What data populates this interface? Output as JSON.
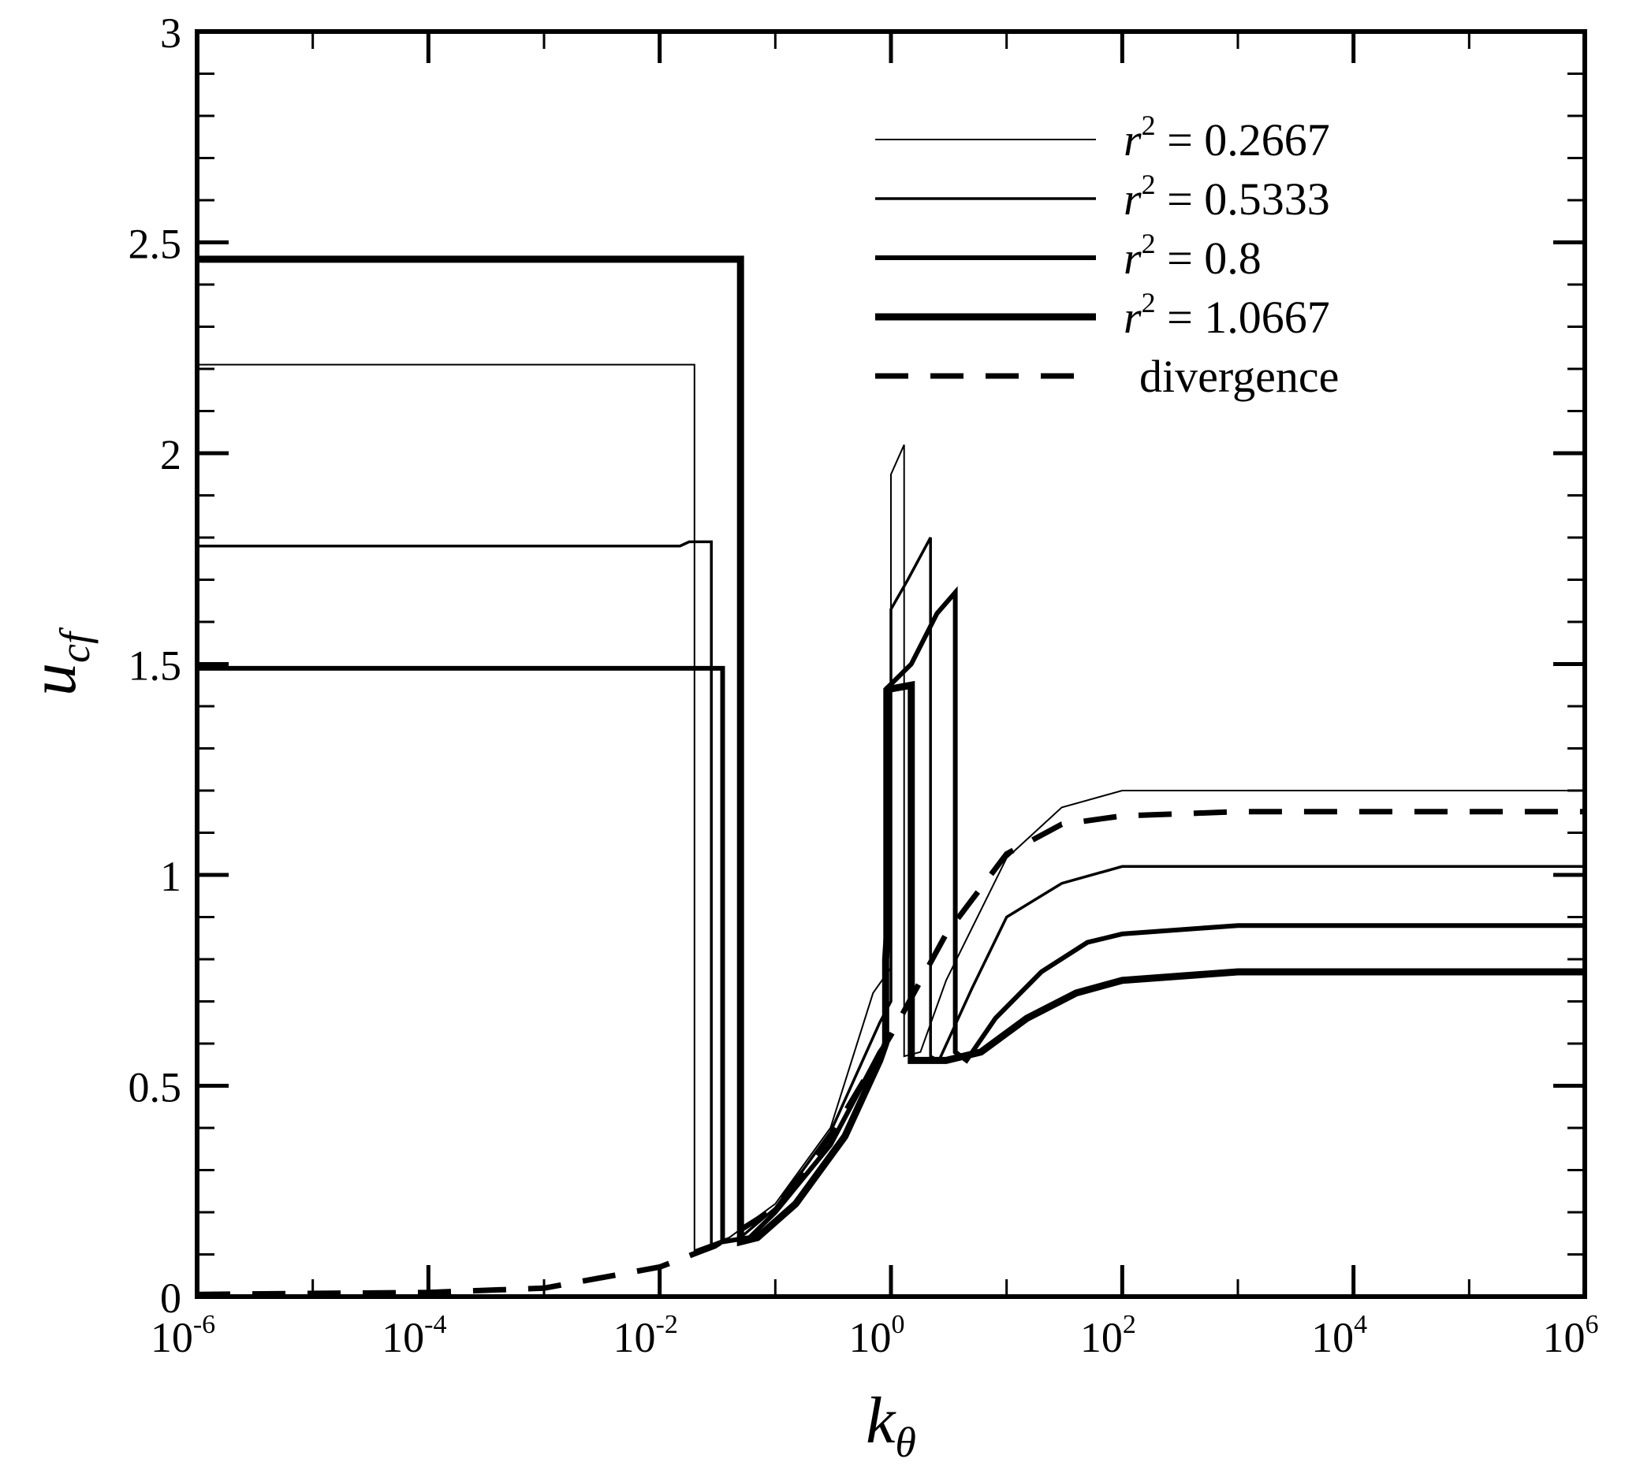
{
  "chart_data": {
    "type": "line",
    "title": "",
    "xscale": "log",
    "xlim": [
      1e-06,
      1000000.0
    ],
    "ylim": [
      0,
      3
    ],
    "grid": false,
    "legend_position": "top-right",
    "xlabel": {
      "base": "k",
      "sub": "θ"
    },
    "ylabel": {
      "base": "u",
      "sub": "cf"
    },
    "x_ticks": [
      {
        "value": 1e-06,
        "base": "10",
        "exp": "-6"
      },
      {
        "value": 0.0001,
        "base": "10",
        "exp": "-4"
      },
      {
        "value": 0.01,
        "base": "10",
        "exp": "-2"
      },
      {
        "value": 1,
        "base": "10",
        "exp": "0"
      },
      {
        "value": 100.0,
        "base": "10",
        "exp": "2"
      },
      {
        "value": 10000.0,
        "base": "10",
        "exp": "4"
      },
      {
        "value": 1000000.0,
        "base": "10",
        "exp": "6"
      }
    ],
    "y_ticks": [
      {
        "value": 0,
        "label": "0"
      },
      {
        "value": 0.5,
        "label": "0.5"
      },
      {
        "value": 1,
        "label": "1"
      },
      {
        "value": 1.5,
        "label": "1.5"
      },
      {
        "value": 2,
        "label": "2"
      },
      {
        "value": 2.5,
        "label": "2.5"
      },
      {
        "value": 3,
        "label": "3"
      }
    ],
    "series": [
      {
        "name": "r2 = 0.2667",
        "legend": {
          "var": "r",
          "sup": "2",
          "rest": " = 0.2667"
        },
        "style": "solid",
        "weight": 2,
        "points": [
          [
            1e-06,
            2.21
          ],
          [
            0.02,
            2.21
          ],
          [
            0.02,
            0.11
          ],
          [
            0.04,
            0.14
          ],
          [
            0.1,
            0.22
          ],
          [
            0.3,
            0.4
          ],
          [
            0.7,
            0.72
          ],
          [
            1.0,
            0.78
          ],
          [
            1.0,
            1.95
          ],
          [
            1.3,
            2.02
          ],
          [
            1.3,
            0.57
          ],
          [
            1.8,
            0.58
          ],
          [
            3,
            0.75
          ],
          [
            10,
            1.04
          ],
          [
            30,
            1.16
          ],
          [
            100,
            1.2
          ],
          [
            1000,
            1.2
          ],
          [
            1000000.0,
            1.2
          ]
        ]
      },
      {
        "name": "r2 = 0.5333",
        "legend": {
          "var": "r",
          "sup": "2",
          "rest": " = 0.5333"
        },
        "style": "solid",
        "weight": 3.5,
        "points": [
          [
            1e-06,
            1.78
          ],
          [
            0.015,
            1.78
          ],
          [
            0.018,
            1.79
          ],
          [
            0.028,
            1.79
          ],
          [
            0.028,
            0.12
          ],
          [
            0.05,
            0.14
          ],
          [
            0.1,
            0.21
          ],
          [
            0.3,
            0.39
          ],
          [
            0.8,
            0.65
          ],
          [
            1.0,
            0.7
          ],
          [
            1.0,
            1.63
          ],
          [
            1.4,
            1.7
          ],
          [
            2.2,
            1.8
          ],
          [
            2.2,
            0.57
          ],
          [
            2.6,
            0.56
          ],
          [
            5,
            0.73
          ],
          [
            10,
            0.9
          ],
          [
            30,
            0.98
          ],
          [
            100,
            1.02
          ],
          [
            1000,
            1.02
          ],
          [
            1000000.0,
            1.02
          ]
        ]
      },
      {
        "name": "r2 = 0.8",
        "legend": {
          "var": "r",
          "sup": "2",
          "rest": " = 0.8"
        },
        "style": "solid",
        "weight": 6,
        "points": [
          [
            1e-06,
            1.49
          ],
          [
            0.035,
            1.49
          ],
          [
            0.035,
            0.13
          ],
          [
            0.06,
            0.14
          ],
          [
            0.1,
            0.2
          ],
          [
            0.3,
            0.36
          ],
          [
            0.8,
            0.58
          ],
          [
            0.9,
            0.6
          ],
          [
            0.9,
            1.44
          ],
          [
            1.5,
            1.5
          ],
          [
            2.5,
            1.62
          ],
          [
            3.6,
            1.67
          ],
          [
            3.6,
            0.58
          ],
          [
            4.5,
            0.56
          ],
          [
            8,
            0.66
          ],
          [
            20,
            0.77
          ],
          [
            50,
            0.84
          ],
          [
            100,
            0.86
          ],
          [
            1000,
            0.88
          ],
          [
            1000000.0,
            0.88
          ]
        ]
      },
      {
        "name": "r2 = 1.0667",
        "legend": {
          "var": "r",
          "sup": "2",
          "rest": " = 1.0667"
        },
        "style": "solid",
        "weight": 9,
        "points": [
          [
            1e-06,
            2.46
          ],
          [
            0.05,
            2.46
          ],
          [
            0.05,
            0.13
          ],
          [
            0.07,
            0.14
          ],
          [
            0.15,
            0.22
          ],
          [
            0.4,
            0.38
          ],
          [
            0.8,
            0.56
          ],
          [
            0.9,
            0.6
          ],
          [
            0.9,
            0.8
          ],
          [
            0.95,
            0.9
          ],
          [
            0.95,
            1.44
          ],
          [
            1.5,
            1.45
          ],
          [
            1.5,
            0.56
          ],
          [
            3,
            0.56
          ],
          [
            6,
            0.58
          ],
          [
            15,
            0.66
          ],
          [
            40,
            0.72
          ],
          [
            100,
            0.75
          ],
          [
            1000,
            0.77
          ],
          [
            1000000.0,
            0.77
          ]
        ]
      },
      {
        "name": "divergence",
        "legend": {
          "var": "",
          "sup": "",
          "rest": "divergence"
        },
        "style": "dashed",
        "weight": 7,
        "points": [
          [
            1e-06,
            0.005
          ],
          [
            0.0001,
            0.01
          ],
          [
            0.001,
            0.02
          ],
          [
            0.01,
            0.07
          ],
          [
            0.03,
            0.12
          ],
          [
            0.1,
            0.21
          ],
          [
            0.3,
            0.38
          ],
          [
            1,
            0.62
          ],
          [
            3,
            0.86
          ],
          [
            10,
            1.05
          ],
          [
            30,
            1.12
          ],
          [
            100,
            1.14
          ],
          [
            1000,
            1.15
          ],
          [
            1000000.0,
            1.15
          ]
        ]
      }
    ]
  }
}
